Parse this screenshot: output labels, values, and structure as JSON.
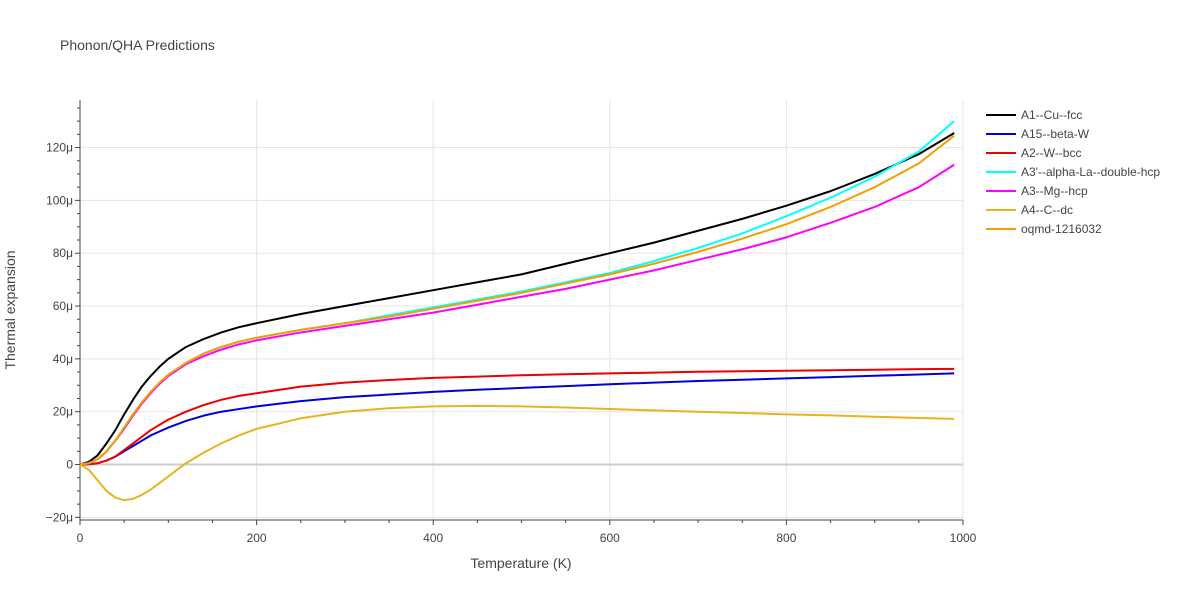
{
  "chart_data": {
    "type": "line",
    "title": "Phonon/QHA Predictions",
    "xlabel": "Temperature (K)",
    "ylabel": "Thermal expansion",
    "xlim": [
      0,
      1000
    ],
    "ylim": [
      -21,
      138
    ],
    "y_unit_suffix": "μ",
    "xticks": [
      0,
      200,
      400,
      600,
      800,
      1000
    ],
    "yticks": [
      -20,
      0,
      20,
      40,
      60,
      80,
      100,
      120
    ],
    "xtick_labels": [
      "0",
      "200",
      "400",
      "600",
      "800",
      "1000"
    ],
    "ytick_labels": [
      "−20μ",
      "0",
      "20μ",
      "40μ",
      "60μ",
      "80μ",
      "100μ",
      "120μ"
    ],
    "grid": true,
    "legend_position": "right",
    "series": [
      {
        "name": "A1--Cu--fcc",
        "color": "#000000",
        "x": [
          0,
          10,
          20,
          30,
          40,
          50,
          60,
          70,
          80,
          90,
          100,
          120,
          140,
          160,
          180,
          200,
          250,
          300,
          350,
          400,
          450,
          500,
          550,
          600,
          650,
          700,
          750,
          800,
          850,
          900,
          950,
          990
        ],
        "y": [
          0,
          1,
          3.5,
          8,
          13,
          19,
          24.5,
          29.5,
          33.5,
          37,
          40,
          44.5,
          47.5,
          50,
          52,
          53.5,
          57,
          60,
          63,
          66,
          69,
          72,
          76,
          80,
          84,
          88.5,
          93,
          98,
          103.5,
          110,
          117.5,
          125.5
        ]
      },
      {
        "name": "A15--beta-W",
        "color": "#0000dd",
        "x": [
          0,
          10,
          20,
          30,
          40,
          50,
          60,
          70,
          80,
          90,
          100,
          120,
          140,
          160,
          180,
          200,
          250,
          300,
          350,
          400,
          450,
          500,
          550,
          600,
          650,
          700,
          750,
          800,
          850,
          900,
          950,
          990
        ],
        "y": [
          0,
          0.1,
          0.5,
          1.5,
          3,
          5,
          7,
          9,
          11,
          12.5,
          14,
          16.5,
          18.5,
          20,
          21,
          22,
          24,
          25.5,
          26.5,
          27.5,
          28.3,
          29,
          29.7,
          30.4,
          31,
          31.6,
          32.1,
          32.6,
          33.1,
          33.6,
          34.1,
          34.5
        ]
      },
      {
        "name": "A2--W--bcc",
        "color": "#ee0000",
        "x": [
          0,
          10,
          20,
          30,
          40,
          50,
          60,
          70,
          80,
          90,
          100,
          120,
          140,
          160,
          180,
          200,
          250,
          300,
          350,
          400,
          450,
          500,
          550,
          600,
          650,
          700,
          750,
          800,
          850,
          900,
          950,
          990
        ],
        "y": [
          0,
          0.1,
          0.5,
          1.5,
          3,
          5.5,
          8,
          10.5,
          13,
          15,
          17,
          20,
          22.5,
          24.5,
          26,
          27,
          29.5,
          31,
          32,
          32.8,
          33.3,
          33.8,
          34.2,
          34.5,
          34.8,
          35.1,
          35.3,
          35.5,
          35.7,
          35.9,
          36.1,
          36.2
        ]
      },
      {
        "name": "A3'--alpha-La--double-hcp",
        "color": "#00ffff",
        "x": [
          0,
          10,
          20,
          30,
          40,
          50,
          60,
          70,
          80,
          90,
          100,
          120,
          140,
          160,
          180,
          200,
          250,
          300,
          350,
          400,
          450,
          500,
          550,
          600,
          650,
          700,
          750,
          800,
          850,
          900,
          950,
          990
        ],
        "y": [
          0,
          0.5,
          2,
          5,
          9,
          14,
          19,
          23.5,
          27.5,
          31,
          34,
          38.5,
          42,
          44.5,
          46.5,
          48,
          51,
          53.5,
          56.5,
          59.5,
          62.5,
          65.5,
          69,
          72.5,
          77,
          82,
          87.5,
          94,
          101,
          109,
          118.5,
          130
        ]
      },
      {
        "name": "A3--Mg--hcp",
        "color": "#ff00ff",
        "x": [
          0,
          10,
          20,
          30,
          40,
          50,
          60,
          70,
          80,
          90,
          100,
          120,
          140,
          160,
          180,
          200,
          250,
          300,
          350,
          400,
          450,
          500,
          550,
          600,
          650,
          700,
          750,
          800,
          850,
          900,
          950,
          990
        ],
        "y": [
          0,
          0.5,
          2,
          5,
          9,
          13.5,
          18.5,
          23,
          27,
          30.5,
          33.5,
          38,
          41,
          43.5,
          45.5,
          47,
          50,
          52.5,
          55,
          57.5,
          60.5,
          63.5,
          66.5,
          70,
          73.5,
          77.5,
          81.5,
          86,
          91.5,
          97.5,
          105,
          113.5
        ]
      },
      {
        "name": "A4--C--dc",
        "color": "#e6b422",
        "x": [
          0,
          10,
          20,
          30,
          40,
          50,
          60,
          70,
          80,
          90,
          100,
          120,
          140,
          160,
          180,
          200,
          250,
          300,
          350,
          400,
          450,
          500,
          550,
          600,
          650,
          700,
          750,
          800,
          850,
          900,
          950,
          990
        ],
        "y": [
          0,
          -2,
          -6,
          -10,
          -12.5,
          -13.5,
          -13,
          -11.5,
          -9.5,
          -7,
          -4.5,
          0.5,
          4.5,
          8,
          11,
          13.5,
          17.5,
          20,
          21.3,
          22,
          22.2,
          22,
          21.6,
          21,
          20.5,
          20,
          19.5,
          19,
          18.6,
          18.1,
          17.6,
          17.3
        ]
      },
      {
        "name": "oqmd-1216032",
        "color": "#f0a000",
        "x": [
          0,
          10,
          20,
          30,
          40,
          50,
          60,
          70,
          80,
          90,
          100,
          120,
          140,
          160,
          180,
          200,
          250,
          300,
          350,
          400,
          450,
          500,
          550,
          600,
          650,
          700,
          750,
          800,
          850,
          900,
          950,
          990
        ],
        "y": [
          0,
          0.5,
          2,
          5,
          9,
          14,
          19,
          23.5,
          27.5,
          31,
          34,
          38.5,
          42,
          44.5,
          46.5,
          48,
          51,
          53.5,
          56,
          59,
          62,
          65,
          68.5,
          72,
          76,
          80.5,
          85.5,
          91,
          97.5,
          105,
          114,
          124.5
        ]
      }
    ]
  }
}
